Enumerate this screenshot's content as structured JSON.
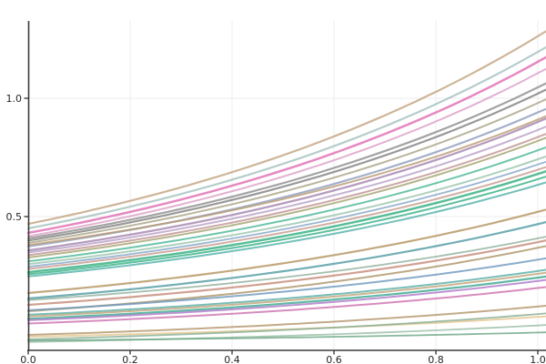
{
  "chart_data": {
    "type": "line",
    "title": "",
    "xlabel": "",
    "ylabel": "",
    "xlim": [
      0.0,
      1.016
    ],
    "ylim": [
      -0.065,
      1.33
    ],
    "xticks": [
      {
        "value": 0.0,
        "label": "0.0"
      },
      {
        "value": 0.2,
        "label": "0.2"
      },
      {
        "value": 0.4,
        "label": "0.4"
      },
      {
        "value": 0.6,
        "label": "0.6"
      },
      {
        "value": 0.8,
        "label": "0.8"
      },
      {
        "value": 1.0,
        "label": "1.0"
      }
    ],
    "yticks": [
      {
        "value": 0.5,
        "label": "0.5"
      },
      {
        "value": 1.0,
        "label": "1.0"
      }
    ],
    "grid": true,
    "grid_color": "#ececec",
    "spine_color": "#3c3c3c",
    "legend": null,
    "line_opacity": 0.8,
    "curve_shape": "convex-exponential",
    "series": [
      {
        "name": "line-01",
        "color": "#c2a380",
        "start": 0.469,
        "end": 1.262,
        "width": 2.2
      },
      {
        "name": "line-02",
        "color": "#a3c0bd",
        "start": 0.45,
        "end": 1.196,
        "width": 2.2
      },
      {
        "name": "line-03",
        "color": "#e06bb2",
        "start": 0.431,
        "end": 1.154,
        "width": 2.5
      },
      {
        "name": "line-04",
        "color": "#dc9ec6",
        "start": 0.417,
        "end": 1.106,
        "width": 2.0
      },
      {
        "name": "line-05",
        "color": "#8c8c8c",
        "start": 0.408,
        "end": 1.046,
        "width": 2.2
      },
      {
        "name": "line-06",
        "color": "#7f7f7f",
        "start": 0.399,
        "end": 1.02,
        "width": 2.2
      },
      {
        "name": "line-07",
        "color": "#a9a284",
        "start": 0.389,
        "end": 0.98,
        "width": 2.0
      },
      {
        "name": "line-08",
        "color": "#8d9cbb",
        "start": 0.374,
        "end": 0.94,
        "width": 2.2
      },
      {
        "name": "line-09",
        "color": "#b99a72",
        "start": 0.38,
        "end": 0.91,
        "width": 2.0
      },
      {
        "name": "line-10",
        "color": "#a483ae",
        "start": 0.357,
        "end": 0.9,
        "width": 2.3
      },
      {
        "name": "line-11",
        "color": "#b89fc8",
        "start": 0.348,
        "end": 0.866,
        "width": 2.0
      },
      {
        "name": "line-12",
        "color": "#bf9191",
        "start": 0.337,
        "end": 0.836,
        "width": 2.0
      },
      {
        "name": "line-13",
        "color": "#a3a36e",
        "start": 0.327,
        "end": 0.82,
        "width": 2.0
      },
      {
        "name": "line-14",
        "color": "#4ab795",
        "start": 0.311,
        "end": 0.78,
        "width": 2.0
      },
      {
        "name": "line-15",
        "color": "#9ac4ad",
        "start": 0.299,
        "end": 0.742,
        "width": 2.0
      },
      {
        "name": "line-16",
        "color": "#7fa3c8",
        "start": 0.288,
        "end": 0.72,
        "width": 1.8
      },
      {
        "name": "line-17",
        "color": "#c59a8c",
        "start": 0.279,
        "end": 0.698,
        "width": 2.0
      },
      {
        "name": "line-18",
        "color": "#2fae7e",
        "start": 0.265,
        "end": 0.68,
        "width": 2.5
      },
      {
        "name": "line-19",
        "color": "#35b085",
        "start": 0.256,
        "end": 0.658,
        "width": 2.0
      },
      {
        "name": "line-20",
        "color": "#4fb0a8",
        "start": 0.247,
        "end": 0.634,
        "width": 2.0
      },
      {
        "name": "line-21",
        "color": "#b3935f",
        "start": 0.177,
        "end": 0.52,
        "width": 2.2
      },
      {
        "name": "line-22",
        "color": "#4f9aa3",
        "start": 0.154,
        "end": 0.468,
        "width": 2.2
      },
      {
        "name": "line-23",
        "color": "#8fae9a",
        "start": 0.147,
        "end": 0.408,
        "width": 1.8
      },
      {
        "name": "line-24",
        "color": "#c48a78",
        "start": 0.127,
        "end": 0.392,
        "width": 2.2
      },
      {
        "name": "line-25",
        "color": "#ab9468",
        "start": 0.1,
        "end": 0.368,
        "width": 2.0
      },
      {
        "name": "line-26",
        "color": "#6d97bd",
        "start": 0.104,
        "end": 0.318,
        "width": 2.0
      },
      {
        "name": "line-27",
        "color": "#57aca6",
        "start": 0.085,
        "end": 0.27,
        "width": 2.0
      },
      {
        "name": "line-28",
        "color": "#bda275",
        "start": 0.078,
        "end": 0.258,
        "width": 2.0
      },
      {
        "name": "line-29",
        "color": "#3aa78f",
        "start": 0.068,
        "end": 0.242,
        "width": 2.2
      },
      {
        "name": "line-30",
        "color": "#ae77c8",
        "start": 0.062,
        "end": 0.228,
        "width": 2.0
      },
      {
        "name": "line-31",
        "color": "#cc6fae",
        "start": 0.048,
        "end": 0.198,
        "width": 2.0
      },
      {
        "name": "line-32",
        "color": "#b3956a",
        "start": 0.0,
        "end": 0.12,
        "width": 2.0
      },
      {
        "name": "line-33",
        "color": "#e4c690",
        "start": -0.008,
        "end": 0.076,
        "width": 2.0
      },
      {
        "name": "line-34",
        "color": "#84ad92",
        "start": -0.019,
        "end": 0.088,
        "width": 1.8
      },
      {
        "name": "line-35",
        "color": "#97bda4",
        "start": -0.03,
        "end": 0.04,
        "width": 1.8
      },
      {
        "name": "line-36",
        "color": "#6aa583",
        "start": -0.024,
        "end": 0.01,
        "width": 1.8
      }
    ]
  }
}
